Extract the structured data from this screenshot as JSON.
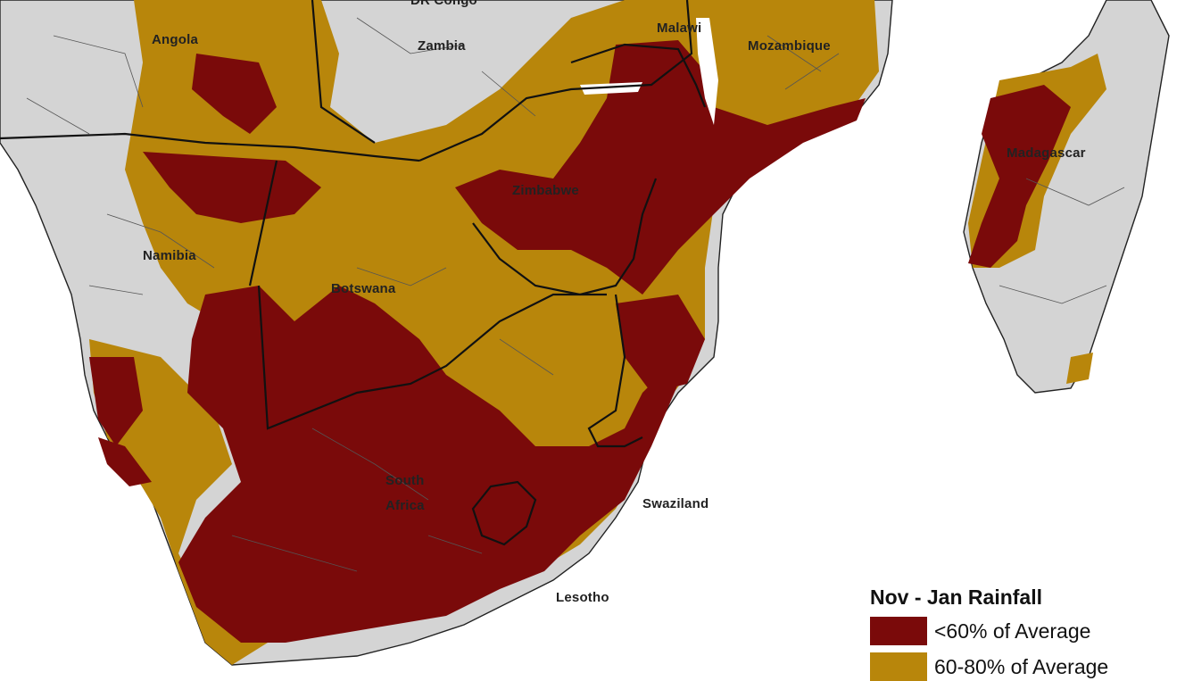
{
  "labels": {
    "dr_congo": "DR Congo",
    "angola": "Angola",
    "zambia": "Zambia",
    "malawi": "Malawi",
    "mozambique": "Mozambique",
    "madagascar": "Madagascar",
    "zimbabwe": "Zimbabwe",
    "namibia": "Namibia",
    "botswana": "Botswana",
    "south_africa_1": "South",
    "south_africa_2": "Africa",
    "swaziland": "Swaziland",
    "lesotho": "Lesotho"
  },
  "legend": {
    "title": "Nov - Jan Rainfall",
    "items": [
      {
        "label": "<60% of Average",
        "color": "#7a0a0a"
      },
      {
        "label": "60-80% of Average",
        "color": "#b8860b"
      }
    ]
  },
  "colors": {
    "land": "#d4d4d4",
    "moderate_deficit": "#b8860b",
    "severe_deficit": "#7a0a0a",
    "water": "#ffffff"
  }
}
